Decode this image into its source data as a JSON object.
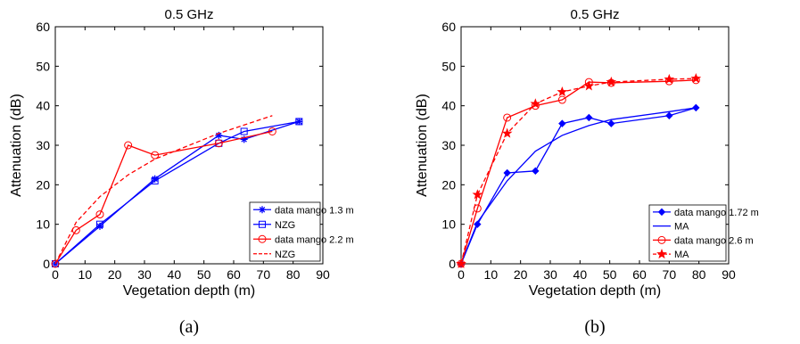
{
  "chart_data": [
    {
      "type": "line",
      "title": "0.5 GHz",
      "xlabel": "Vegetation depth (m)",
      "ylabel": "Attenuation (dB)",
      "caption": "(a)",
      "xlim": [
        0,
        90
      ],
      "ylim": [
        0,
        60
      ],
      "xticks": [
        "0",
        "10",
        "20",
        "30",
        "40",
        "50",
        "60",
        "70",
        "80",
        "90"
      ],
      "yticks": [
        "0",
        "10",
        "20",
        "30",
        "40",
        "50",
        "60"
      ],
      "legend_position": "bottom-right",
      "grid": false,
      "series": [
        {
          "name": "data mango 1.3 m",
          "color": "#0000ff",
          "dash": "solid",
          "marker": "asterisk",
          "x": [
            0,
            15,
            33.5,
            55,
            63.5,
            82
          ],
          "y": [
            0,
            9.5,
            21.5,
            32.5,
            31.5,
            36
          ]
        },
        {
          "name": "NZG",
          "color": "#0000ff",
          "dash": "solid",
          "marker": "square",
          "x": [
            0,
            15,
            33.5,
            55,
            63.5,
            82
          ],
          "y": [
            0,
            10,
            21,
            30.5,
            33.5,
            36
          ]
        },
        {
          "name": "data mango 2.2 m",
          "color": "#ff0000",
          "dash": "solid",
          "marker": "circle",
          "x": [
            0,
            7,
            15,
            24.5,
            33.5,
            55,
            73
          ],
          "y": [
            0,
            8.5,
            12.5,
            30,
            27.5,
            30.5,
            33.5
          ]
        },
        {
          "name": "NZG",
          "color": "#ff0000",
          "dash": "dashed",
          "marker": "none",
          "x": [
            0,
            7,
            15,
            24.5,
            33.5,
            55,
            73
          ],
          "y": [
            0,
            10.5,
            17,
            22.5,
            26.5,
            33,
            37.5
          ]
        }
      ]
    },
    {
      "type": "line",
      "title": "0.5 GHz",
      "xlabel": "Vegetation depth (m)",
      "ylabel": "Attenuation (dB)",
      "caption": "(b)",
      "xlim": [
        0,
        90
      ],
      "ylim": [
        0,
        60
      ],
      "xticks": [
        "0",
        "10",
        "20",
        "30",
        "40",
        "50",
        "60",
        "70",
        "80",
        "90"
      ],
      "yticks": [
        "0",
        "10",
        "20",
        "30",
        "40",
        "50",
        "60"
      ],
      "legend_position": "bottom-right",
      "grid": false,
      "series": [
        {
          "name": "data mango 1.72 m",
          "color": "#0000ff",
          "dash": "solid",
          "marker": "diamond",
          "x": [
            0,
            5.5,
            15.5,
            25,
            34,
            43,
            50.5,
            70,
            79
          ],
          "y": [
            0,
            10,
            23,
            23.5,
            35.5,
            37,
            35.5,
            37.5,
            39.5
          ]
        },
        {
          "name": "MA",
          "color": "#0000ff",
          "dash": "solid",
          "marker": "none",
          "x": [
            0,
            5.5,
            15.5,
            25,
            34,
            43,
            50.5,
            70,
            79
          ],
          "y": [
            0,
            10.5,
            21,
            28.5,
            32.5,
            35,
            36.5,
            38.5,
            39.5
          ]
        },
        {
          "name": "data mango 2.6 m",
          "color": "#ff0000",
          "dash": "solid",
          "marker": "circle",
          "x": [
            0,
            5.5,
            15.5,
            25,
            34,
            43,
            50.5,
            70,
            79
          ],
          "y": [
            0,
            14,
            37,
            40,
            41.5,
            46,
            45.8,
            46.2,
            46.5
          ]
        },
        {
          "name": "MA",
          "color": "#ff0000",
          "dash": "dashed",
          "marker": "star",
          "x": [
            0,
            5.5,
            15.5,
            25,
            34,
            43,
            50.5,
            70,
            79
          ],
          "y": [
            0,
            17.5,
            33,
            40.5,
            43.5,
            45,
            46,
            46.7,
            46.9
          ]
        }
      ]
    }
  ]
}
